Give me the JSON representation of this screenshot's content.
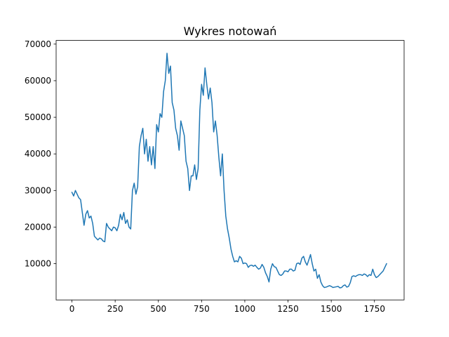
{
  "chart_data": {
    "type": "line",
    "title": "Wykres notowań",
    "xlabel": "",
    "ylabel": "",
    "xlim": [
      -91.5,
      1921.5
    ],
    "ylim": [
      100,
      71000
    ],
    "x_ticks": [
      0,
      250,
      500,
      750,
      1000,
      1250,
      1500,
      1750
    ],
    "x_tick_labels": [
      "0",
      "250",
      "500",
      "750",
      "1000",
      "1250",
      "1500",
      "1750"
    ],
    "y_ticks": [
      10000,
      20000,
      30000,
      40000,
      50000,
      60000,
      70000
    ],
    "y_tick_labels": [
      "10000",
      "20000",
      "30000",
      "40000",
      "50000",
      "60000",
      "70000"
    ],
    "grid": false,
    "legend": "none",
    "colors": {
      "line": "#1f77b4",
      "axes": "#000000",
      "background": "#ffffff"
    },
    "series": [
      {
        "x": [
          0,
          10,
          20,
          30,
          40,
          50,
          60,
          70,
          80,
          90,
          100,
          110,
          120,
          130,
          140,
          150,
          160,
          170,
          180,
          190,
          200,
          210,
          220,
          230,
          240,
          250,
          260,
          270,
          280,
          290,
          300,
          310,
          320,
          330,
          340,
          350,
          360,
          370,
          380,
          390,
          400,
          410,
          420,
          430,
          440,
          450,
          460,
          470,
          480,
          490,
          500,
          510,
          520,
          530,
          540,
          550,
          560,
          570,
          580,
          590,
          600,
          610,
          620,
          630,
          640,
          650,
          660,
          670,
          680,
          690,
          700,
          710,
          720,
          730,
          740,
          750,
          760,
          770,
          780,
          790,
          800,
          810,
          820,
          830,
          840,
          850,
          860,
          870,
          880,
          890,
          900,
          910,
          920,
          930,
          940,
          950,
          960,
          970,
          980,
          990,
          1000,
          1010,
          1020,
          1030,
          1040,
          1050,
          1060,
          1070,
          1080,
          1090,
          1100,
          1110,
          1120,
          1130,
          1140,
          1150,
          1160,
          1170,
          1180,
          1190,
          1200,
          1210,
          1220,
          1230,
          1240,
          1250,
          1260,
          1270,
          1280,
          1290,
          1300,
          1310,
          1320,
          1330,
          1340,
          1350,
          1360,
          1370,
          1380,
          1390,
          1400,
          1410,
          1420,
          1430,
          1440,
          1450,
          1460,
          1470,
          1480,
          1490,
          1500,
          1510,
          1520,
          1530,
          1540,
          1550,
          1560,
          1570,
          1580,
          1590,
          1600,
          1610,
          1620,
          1630,
          1640,
          1650,
          1660,
          1670,
          1680,
          1690,
          1700,
          1710,
          1720,
          1730,
          1740,
          1750,
          1760,
          1770,
          1780,
          1790,
          1800,
          1810,
          1820
        ],
        "values": [
          29500,
          28500,
          30000,
          29000,
          28000,
          27500,
          24000,
          20500,
          23500,
          24500,
          22500,
          23000,
          21000,
          17500,
          17000,
          16500,
          17000,
          16800,
          16200,
          16000,
          21000,
          20000,
          19500,
          19000,
          20000,
          19800,
          19000,
          20500,
          23500,
          22000,
          24000,
          21000,
          22000,
          20000,
          19500,
          30000,
          32000,
          29000,
          31000,
          42000,
          45000,
          47000,
          40000,
          44000,
          38000,
          42000,
          37000,
          42000,
          36000,
          48000,
          46000,
          51000,
          50000,
          57000,
          60000,
          67500,
          62000,
          64000,
          54000,
          52000,
          47000,
          45000,
          41000,
          49000,
          47000,
          45000,
          38000,
          36000,
          30000,
          34000,
          34000,
          37000,
          33000,
          36000,
          52000,
          59000,
          56000,
          63500,
          59000,
          55000,
          58000,
          54000,
          46000,
          49000,
          45000,
          39000,
          34000,
          40000,
          30000,
          23000,
          19500,
          17000,
          14000,
          12000,
          10500,
          10800,
          10500,
          12000,
          11500,
          10000,
          10200,
          10000,
          9000,
          9500,
          9600,
          9300,
          9600,
          9000,
          8500,
          8800,
          9800,
          9000,
          7500,
          6500,
          5000,
          8500,
          10000,
          9200,
          9000,
          8000,
          7000,
          6800,
          7200,
          8000,
          8000,
          7800,
          8500,
          8500,
          8000,
          8200,
          10000,
          10200,
          9800,
          11500,
          12000,
          10500,
          9600,
          11000,
          12500,
          10000,
          8000,
          8500,
          6000,
          7000,
          5000,
          4000,
          3500,
          3600,
          3800,
          4000,
          3800,
          3500,
          3600,
          3700,
          3800,
          3400,
          3500,
          4000,
          4200,
          3600,
          3800,
          4800,
          6500,
          6700,
          6500,
          6800,
          7000,
          7000,
          6800,
          7200,
          7000,
          6500,
          7000,
          6800,
          8500,
          7000,
          6200,
          6500,
          7000,
          7500,
          8000,
          9000,
          10000
        ]
      }
    ]
  }
}
